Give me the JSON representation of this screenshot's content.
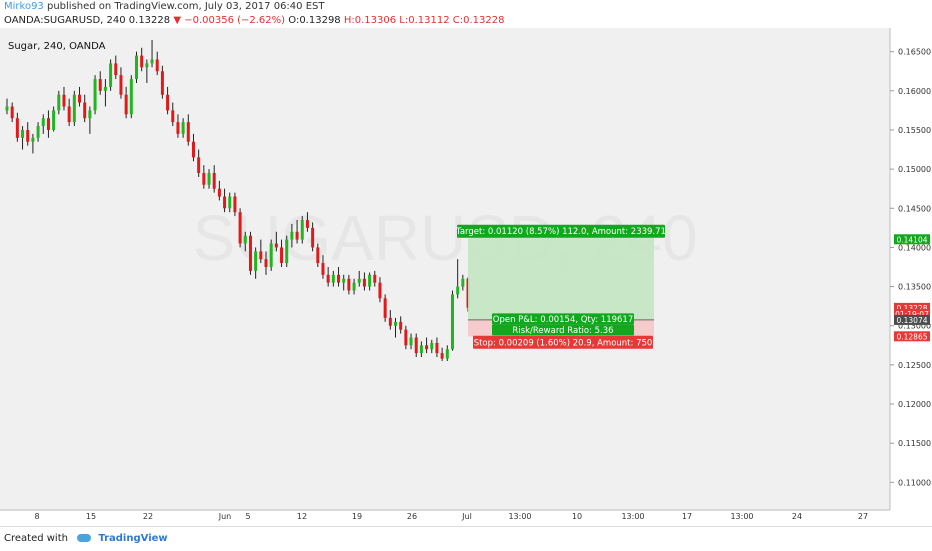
{
  "header": {
    "author": "Mirko93",
    "published_text": "published on TradingView.com, July 03, 2017 06:40 EST"
  },
  "ohlc": {
    "symbol_tf": "OANDA:SUGARUSD, 240",
    "last": "0.13228",
    "change": "▼ −0.00356 (−2.62%)",
    "open": "O:0.13298",
    "high": "H:0.13306",
    "low": "L:0.13112",
    "close": "C:0.13228"
  },
  "symbol_label": "Sugar, 240, OANDA",
  "watermark": "SUGARUSD, 240",
  "footer": {
    "created_with": "Created with",
    "brand": "TradingView"
  },
  "chart_data": {
    "type": "candlestick",
    "ylim": [
      0.108,
      0.167
    ],
    "y_ticks": [
      "0.16500",
      "0.16000",
      "0.15500",
      "0.15000",
      "0.14500",
      "0.14000",
      "0.13500",
      "0.13000",
      "0.12500",
      "0.12000",
      "0.11500",
      "0.11000"
    ],
    "x_ticks": [
      "8",
      "15",
      "22",
      "Jun",
      "5",
      "12",
      "19",
      "26",
      "Jul",
      "13:00",
      "10",
      "13:00",
      "17",
      "13:00",
      "24",
      "27"
    ],
    "candles": [
      [
        0.1575,
        0.159,
        0.157,
        0.158
      ],
      [
        0.158,
        0.1585,
        0.156,
        0.1565
      ],
      [
        0.1565,
        0.1572,
        0.1535,
        0.154
      ],
      [
        0.154,
        0.1555,
        0.1525,
        0.155
      ],
      [
        0.155,
        0.156,
        0.153,
        0.1535
      ],
      [
        0.1535,
        0.1545,
        0.152,
        0.154
      ],
      [
        0.154,
        0.156,
        0.1535,
        0.1555
      ],
      [
        0.1555,
        0.157,
        0.1545,
        0.1565
      ],
      [
        0.1565,
        0.1575,
        0.154,
        0.155
      ],
      [
        0.155,
        0.158,
        0.1548,
        0.1575
      ],
      [
        0.1575,
        0.16,
        0.157,
        0.1595
      ],
      [
        0.1595,
        0.1605,
        0.1575,
        0.158
      ],
      [
        0.158,
        0.159,
        0.1555,
        0.156
      ],
      [
        0.156,
        0.16,
        0.1555,
        0.1595
      ],
      [
        0.1595,
        0.1605,
        0.158,
        0.1585
      ],
      [
        0.1585,
        0.1595,
        0.156,
        0.1565
      ],
      [
        0.1565,
        0.158,
        0.1545,
        0.1575
      ],
      [
        0.1575,
        0.162,
        0.157,
        0.1615
      ],
      [
        0.1615,
        0.1625,
        0.1595,
        0.16
      ],
      [
        0.16,
        0.1615,
        0.158,
        0.1605
      ],
      [
        0.1605,
        0.164,
        0.16,
        0.1635
      ],
      [
        0.1635,
        0.1645,
        0.1615,
        0.162
      ],
      [
        0.162,
        0.163,
        0.159,
        0.1595
      ],
      [
        0.1595,
        0.1605,
        0.1565,
        0.157
      ],
      [
        0.157,
        0.162,
        0.1565,
        0.1615
      ],
      [
        0.1615,
        0.165,
        0.161,
        0.1645
      ],
      [
        0.1645,
        0.1655,
        0.1625,
        0.163
      ],
      [
        0.163,
        0.164,
        0.161,
        0.1635
      ],
      [
        0.1635,
        0.1665,
        0.163,
        0.164
      ],
      [
        0.164,
        0.165,
        0.162,
        0.1625
      ],
      [
        0.1625,
        0.1632,
        0.159,
        0.1595
      ],
      [
        0.1595,
        0.1605,
        0.157,
        0.1575
      ],
      [
        0.1575,
        0.1585,
        0.1555,
        0.156
      ],
      [
        0.156,
        0.157,
        0.154,
        0.1545
      ],
      [
        0.1545,
        0.1565,
        0.154,
        0.156
      ],
      [
        0.156,
        0.157,
        0.153,
        0.1535
      ],
      [
        0.1535,
        0.1545,
        0.151,
        0.1515
      ],
      [
        0.1515,
        0.1525,
        0.149,
        0.1495
      ],
      [
        0.1495,
        0.1505,
        0.1475,
        0.148
      ],
      [
        0.148,
        0.15,
        0.1475,
        0.1495
      ],
      [
        0.1495,
        0.1505,
        0.147,
        0.1475
      ],
      [
        0.1475,
        0.1485,
        0.146,
        0.1465
      ],
      [
        0.1465,
        0.1475,
        0.1445,
        0.145
      ],
      [
        0.145,
        0.147,
        0.1445,
        0.1465
      ],
      [
        0.1465,
        0.147,
        0.144,
        0.1445
      ],
      [
        0.1445,
        0.145,
        0.14,
        0.1405
      ],
      [
        0.1405,
        0.142,
        0.1395,
        0.1415
      ],
      [
        0.1415,
        0.142,
        0.1365,
        0.137
      ],
      [
        0.137,
        0.14,
        0.136,
        0.1395
      ],
      [
        0.1395,
        0.141,
        0.138,
        0.1385
      ],
      [
        0.1385,
        0.1395,
        0.1365,
        0.1375
      ],
      [
        0.1375,
        0.141,
        0.137,
        0.1405
      ],
      [
        0.1405,
        0.142,
        0.1395,
        0.14
      ],
      [
        0.14,
        0.141,
        0.1375,
        0.138
      ],
      [
        0.138,
        0.1415,
        0.1375,
        0.141
      ],
      [
        0.141,
        0.143,
        0.14,
        0.142
      ],
      [
        0.142,
        0.1435,
        0.1405,
        0.141
      ],
      [
        0.141,
        0.144,
        0.1405,
        0.1435
      ],
      [
        0.1435,
        0.1445,
        0.142,
        0.1425
      ],
      [
        0.1425,
        0.1432,
        0.1395,
        0.14
      ],
      [
        0.14,
        0.1405,
        0.1375,
        0.138
      ],
      [
        0.138,
        0.139,
        0.136,
        0.1365
      ],
      [
        0.1365,
        0.1375,
        0.135,
        0.1355
      ],
      [
        0.1355,
        0.137,
        0.135,
        0.1365
      ],
      [
        0.1365,
        0.1375,
        0.135,
        0.1355
      ],
      [
        0.1355,
        0.1365,
        0.1345,
        0.136
      ],
      [
        0.136,
        0.1365,
        0.134,
        0.1345
      ],
      [
        0.1345,
        0.136,
        0.134,
        0.1355
      ],
      [
        0.1355,
        0.137,
        0.135,
        0.136
      ],
      [
        0.136,
        0.1368,
        0.1345,
        0.135
      ],
      [
        0.135,
        0.1368,
        0.1345,
        0.1365
      ],
      [
        0.1365,
        0.137,
        0.135,
        0.1355
      ],
      [
        0.1355,
        0.1362,
        0.133,
        0.1335
      ],
      [
        0.1335,
        0.134,
        0.1305,
        0.131
      ],
      [
        0.131,
        0.132,
        0.1295,
        0.13
      ],
      [
        0.13,
        0.131,
        0.1285,
        0.1305
      ],
      [
        0.1305,
        0.1312,
        0.129,
        0.1295
      ],
      [
        0.1295,
        0.13,
        0.127,
        0.1275
      ],
      [
        0.1275,
        0.129,
        0.127,
        0.1285
      ],
      [
        0.1285,
        0.129,
        0.126,
        0.1265
      ],
      [
        0.1265,
        0.128,
        0.126,
        0.1275
      ],
      [
        0.1275,
        0.1285,
        0.1265,
        0.127
      ],
      [
        0.127,
        0.1282,
        0.1265,
        0.1278
      ],
      [
        0.1278,
        0.1285,
        0.126,
        0.1265
      ],
      [
        0.1265,
        0.1272,
        0.1255,
        0.1258
      ],
      [
        0.1258,
        0.1275,
        0.1255,
        0.127
      ],
      [
        0.127,
        0.1345,
        0.1268,
        0.134
      ],
      [
        0.134,
        0.1385,
        0.1335,
        0.135
      ],
      [
        0.135,
        0.1365,
        0.1345,
        0.136
      ],
      [
        0.136,
        0.1362,
        0.1318,
        0.1323
      ]
    ],
    "position": {
      "target_label": "Target: 0.01120 (8.57%) 112.0, Amount: 2339.71",
      "pnl_label": "Open P&L: 0.00154, Qty: 119617",
      "rr_label": "Risk/Reward Ratio: 5.36",
      "stop_label": "Stop: 0.00209 (1.60%) 20.9, Amount: 750",
      "entry": 0.13074,
      "target": 0.14194,
      "stop": 0.12865
    },
    "price_tags": [
      {
        "text": "0.14104",
        "value": 0.14104,
        "color": "#10a81c"
      },
      {
        "text": "0.13228",
        "value": 0.13228,
        "color": "#e53935"
      },
      {
        "text": "01:19:07",
        "value": 0.1315,
        "color": "#e53935"
      },
      {
        "text": "0.13074",
        "value": 0.13074,
        "color": "#4d4d4d"
      },
      {
        "text": "0.12865",
        "value": 0.12865,
        "color": "#e53935"
      }
    ],
    "colors": {
      "up": "#22b520",
      "down": "#e01a1a",
      "bg": "#f0f0f0",
      "target_zone": "#c3e6c1",
      "stop_zone": "#f6c6c6"
    }
  }
}
